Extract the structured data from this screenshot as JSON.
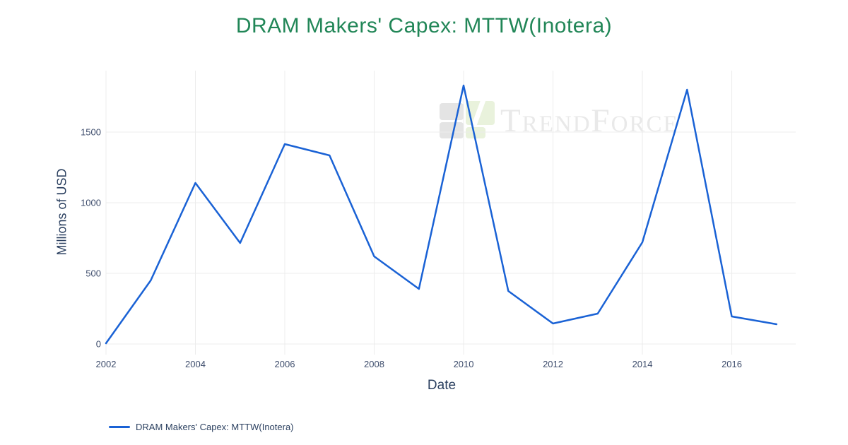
{
  "title": {
    "text": "DRAM Makers' Capex: MTTW(Inotera)",
    "color": "#218657"
  },
  "watermark": {
    "text": "TrendForce"
  },
  "colors": {
    "line": "#1a62d5",
    "title": "#218657",
    "axis_text": "#2a3f5f",
    "tick_text": "#3f4e6d",
    "gridline": "#ececec",
    "watermark_text": "#e9e9e9",
    "watermark_gray": "#e4e4e4",
    "watermark_green": "#e9f2dc"
  },
  "chart_data": {
    "type": "line",
    "title": "DRAM Makers' Capex: MTTW(Inotera)",
    "xlabel": "Date",
    "ylabel": "Millions of USD",
    "x": [
      2002,
      2003,
      2004,
      2005,
      2006,
      2007,
      2008,
      2009,
      2010,
      2011,
      2012,
      2013,
      2014,
      2015,
      2016,
      2017
    ],
    "series": [
      {
        "name": "DRAM Makers' Capex: MTTW(Inotera)",
        "color": "#1a62d5",
        "values": [
          5,
          450,
          1140,
          715,
          1415,
          1335,
          620,
          390,
          1830,
          375,
          145,
          215,
          720,
          1800,
          195,
          140
        ]
      }
    ],
    "x_ticks": [
      2002,
      2004,
      2006,
      2008,
      2010,
      2012,
      2014,
      2016
    ],
    "y_ticks": [
      0,
      500,
      1000,
      1500
    ],
    "xlim": [
      2002,
      2017.43
    ],
    "ylim": [
      -75,
      1935
    ],
    "grid": true,
    "legend_position": "bottom-left"
  }
}
